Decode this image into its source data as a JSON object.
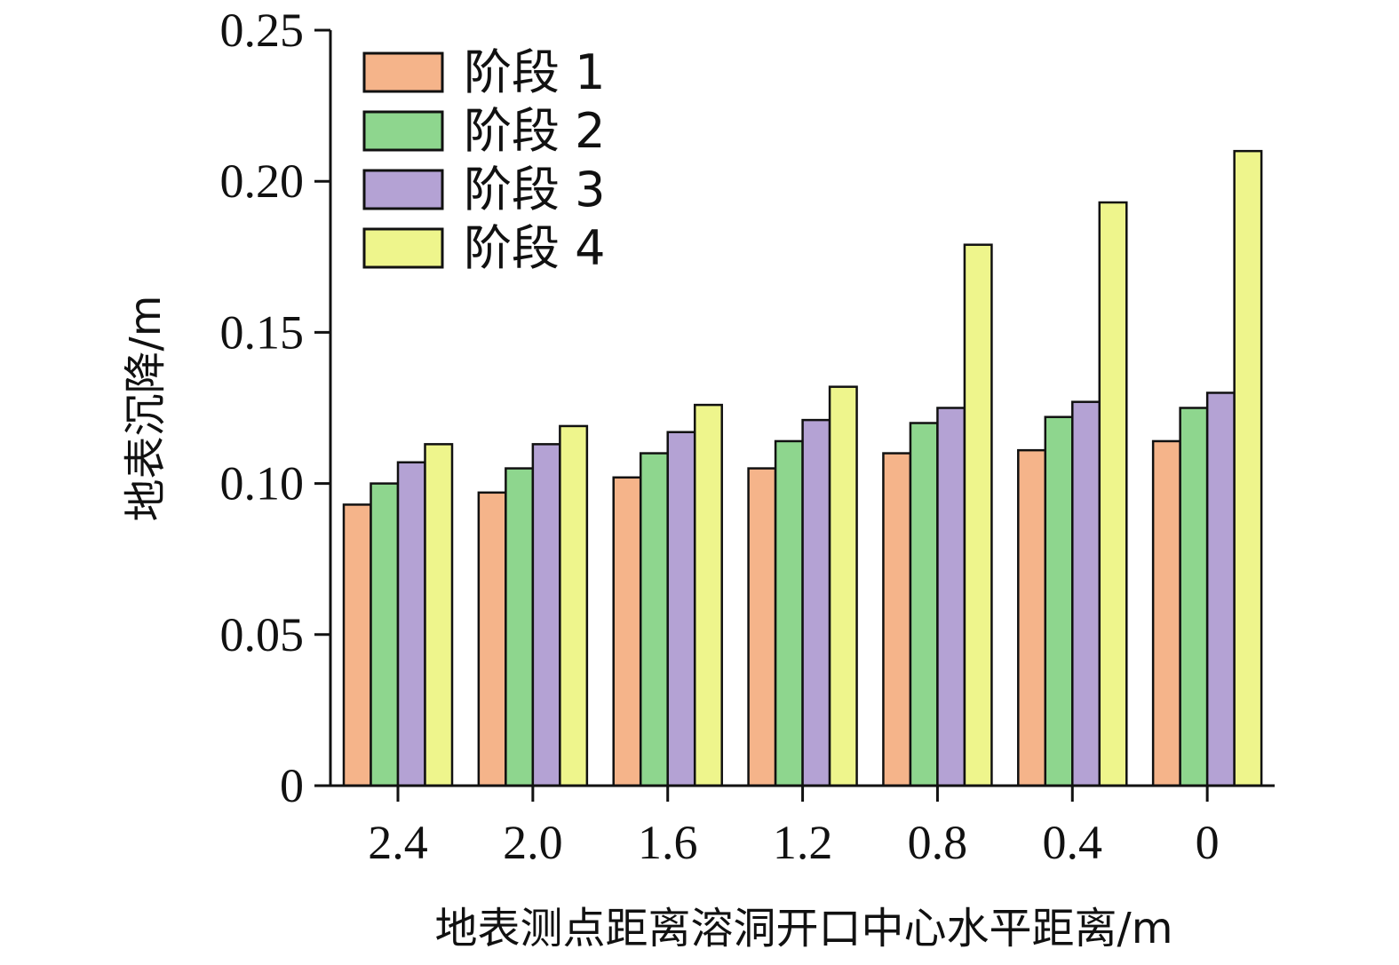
{
  "chart_data": {
    "type": "bar",
    "xlabel": "地表测点距离溶洞开口中心水平距离/m",
    "ylabel": "地表沉降/m",
    "ylim": [
      0,
      0.25
    ],
    "yticks": [
      "0",
      "0.05",
      "0.10",
      "0.15",
      "0.20",
      "0.25"
    ],
    "ytick_values": [
      0,
      0.05,
      0.1,
      0.15,
      0.2,
      0.25
    ],
    "categories": [
      "2.4",
      "2.0",
      "1.6",
      "1.2",
      "0.8",
      "0.4",
      "0"
    ],
    "series": [
      {
        "name": "阶段 1",
        "color": "#F5B48A",
        "values": [
          0.093,
          0.097,
          0.102,
          0.105,
          0.11,
          0.111,
          0.114
        ]
      },
      {
        "name": "阶段 2",
        "color": "#8ED68E",
        "values": [
          0.1,
          0.105,
          0.11,
          0.114,
          0.12,
          0.122,
          0.125
        ]
      },
      {
        "name": "阶段 3",
        "color": "#B4A2D4",
        "values": [
          0.107,
          0.113,
          0.117,
          0.121,
          0.125,
          0.127,
          0.13
        ]
      },
      {
        "name": "阶段 4",
        "color": "#EEF58C",
        "values": [
          0.113,
          0.119,
          0.126,
          0.132,
          0.179,
          0.193,
          0.21
        ]
      }
    ],
    "legend_position": "top-left",
    "grid": false
  }
}
